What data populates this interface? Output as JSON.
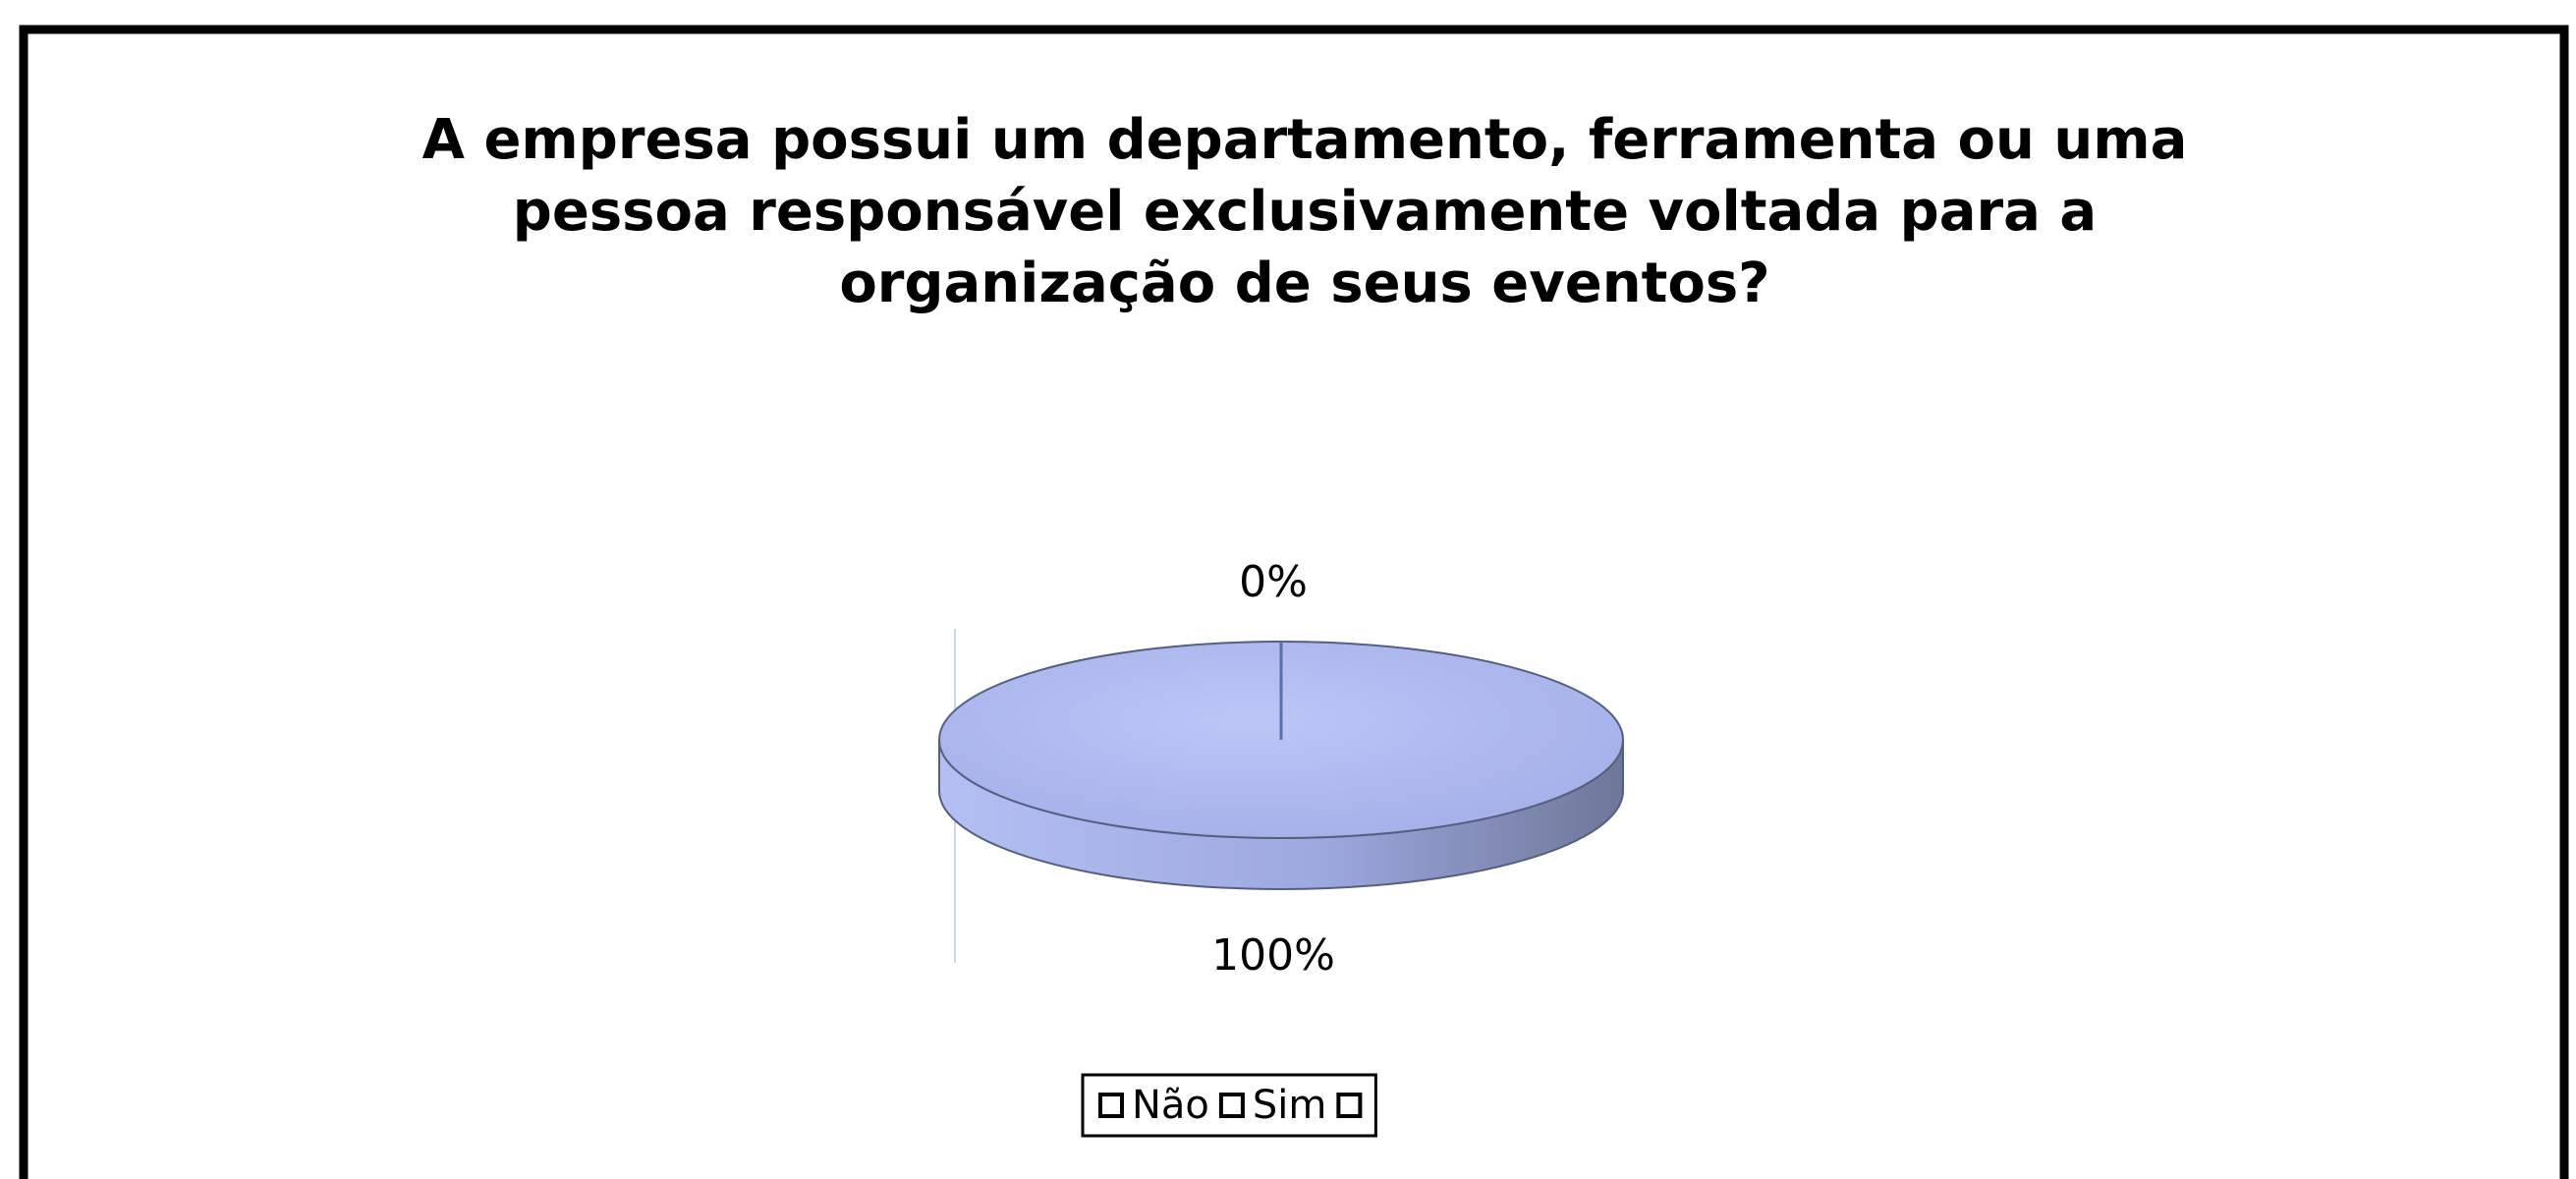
{
  "chart_data": {
    "type": "pie",
    "title": [
      "A empresa possui um departamento, ferramenta ou uma",
      "pessoa responsável exclusivamente voltada para a",
      "organização de seus eventos?"
    ],
    "categories": [
      "Não",
      "Sim",
      null
    ],
    "values": [
      100,
      0,
      null
    ],
    "value_labels": [
      "100%",
      "0%",
      null
    ],
    "colors": [
      "#a9b5ee",
      "#a9b5ee",
      "#a9b5ee"
    ],
    "legend": "bottom"
  }
}
